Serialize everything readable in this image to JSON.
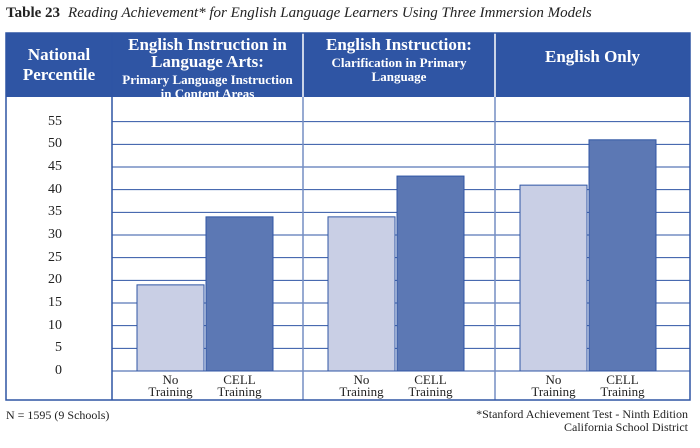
{
  "chart_data": {
    "type": "bar",
    "table_label": "Table 23",
    "title": "Reading Achievement* for English Language Learners Using Three Immersion Models",
    "y_label": "National Percentile",
    "groups": [
      {
        "title": "English Instruction in Language Arts:",
        "subtitle": "Primary Language Instruction in Content Areas"
      },
      {
        "title": "English Instruction:",
        "subtitle": "Clarification in Primary Language"
      },
      {
        "title": "English Only"
      }
    ],
    "series": [
      {
        "name": "No Training",
        "color": "#c9cfe5",
        "values": [
          19,
          34,
          41
        ]
      },
      {
        "name": "CELL Training",
        "color": "#5c78b4",
        "values": [
          34,
          43,
          51
        ]
      }
    ],
    "ylim": [
      0,
      60
    ],
    "yticks": [
      0,
      5,
      10,
      15,
      20,
      25,
      30,
      35,
      40,
      45,
      50,
      55
    ],
    "grid": true,
    "header_color": "#2f55a4",
    "note": "N = 1595 (9 Schools)",
    "source": [
      "*Stanford Achievement Test - Ninth Edition",
      "California School District"
    ]
  }
}
